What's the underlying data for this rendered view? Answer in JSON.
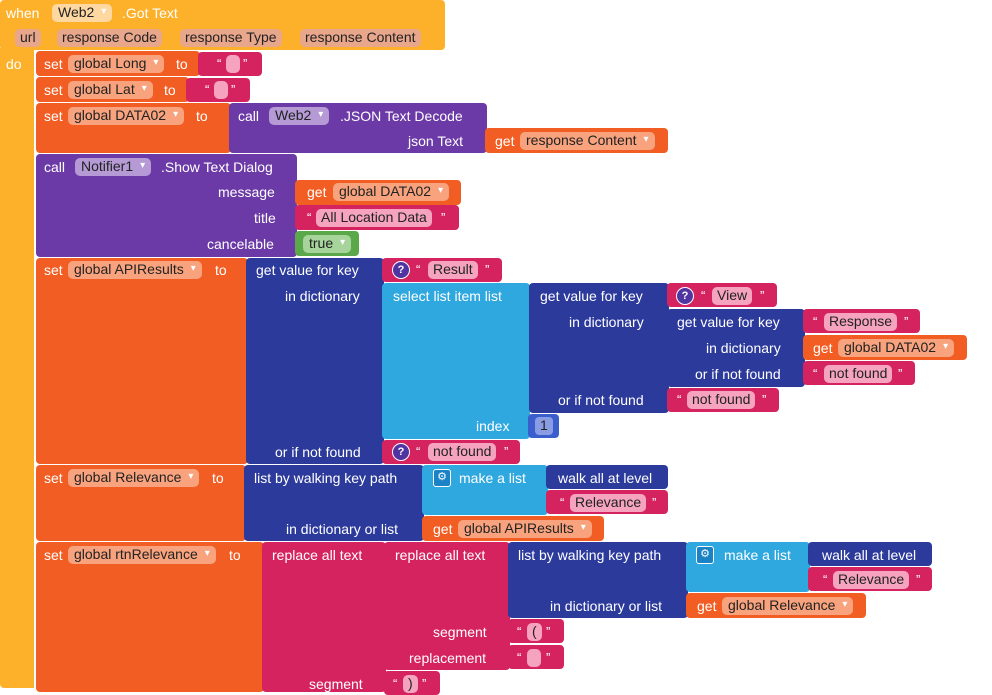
{
  "event": {
    "when": "when",
    "component": "Web2",
    "event_name": ".Got Text",
    "params": [
      "url",
      "response Code",
      "response Type",
      "response Content"
    ],
    "do": "do"
  },
  "kw": {
    "set": "set",
    "to": "to",
    "get": "get",
    "call": "call",
    "get_value_for_key": "get value for key",
    "in_dictionary": "in dictionary",
    "or_if_not_found": "or if not found",
    "select_list_item": "select list item  list",
    "index": "index",
    "list_by_walking": "list by walking key path",
    "make_a_list": "make a list",
    "walk_all": "walk all at level",
    "in_dict_or_list": "in dictionary or list",
    "replace_all_text": "replace all text",
    "segment": "segment",
    "replacement": "replacement",
    "open_quote": "“",
    "close_quote": "”"
  },
  "stmts": {
    "s1_var": "global Long",
    "s2_var": "global Lat",
    "s3_var": "global DATA02",
    "s3_comp": "Web2",
    "s3_method": ".JSON Text Decode",
    "s3_arg_label": "json Text",
    "s3_get": "response Content",
    "notifier_comp": "Notifier1",
    "notifier_method": ".Show Text Dialog",
    "message_label": "message",
    "message_get": "global DATA02",
    "title_label": "title",
    "title_text": "All Location Data",
    "cancelable_label": "cancelable",
    "cancelable_value": "true",
    "s5_var": "global APIResults",
    "key_result": "Result",
    "key_view": "View",
    "key_response": "Response",
    "inner_get": "global DATA02",
    "not_found_1": "not found",
    "not_found_2": "not found",
    "not_found_3": "not found",
    "index_value": "1",
    "s6_var": "global Relevance",
    "s6_key": "Relevance",
    "s6_get": "global APIResults",
    "s7_var": "global rtnRelevance",
    "s7_key": "Relevance",
    "s7_get": "global Relevance",
    "segment_1": "(",
    "segment_2": ")"
  }
}
